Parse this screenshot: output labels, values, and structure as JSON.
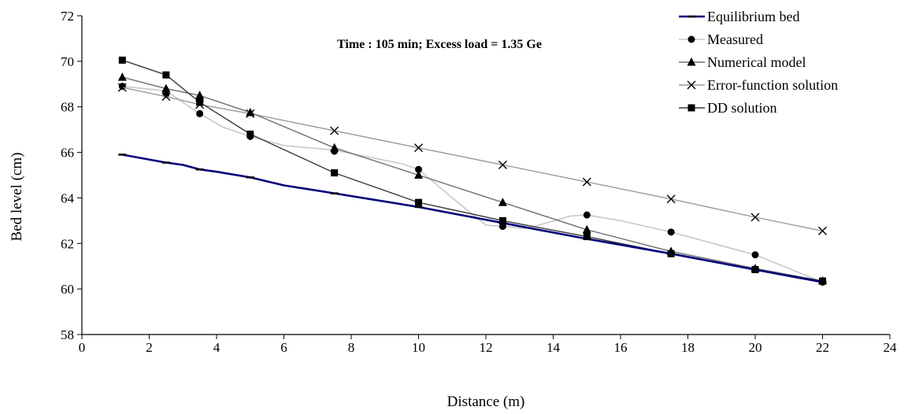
{
  "chart_data": {
    "type": "line",
    "annotation": "Time : 105 min; Excess load = 1.35 Ge",
    "xlabel": "Distance (m)",
    "ylabel": "Bed level (cm)",
    "xlim": [
      0,
      24
    ],
    "ylim": [
      58,
      72
    ],
    "x_ticks": [
      0,
      2,
      4,
      6,
      8,
      10,
      12,
      14,
      16,
      18,
      20,
      22,
      24
    ],
    "y_ticks": [
      58,
      60,
      62,
      64,
      66,
      68,
      70,
      72
    ],
    "grid": false,
    "legend_position": "top-right",
    "series": [
      {
        "name": "Equilibrium bed",
        "color": "#00007a",
        "marker": "dash",
        "points": [
          [
            1.2,
            65.9
          ],
          [
            2.5,
            65.55
          ],
          [
            3.0,
            65.45
          ],
          [
            3.5,
            65.25
          ],
          [
            4.0,
            65.15
          ],
          [
            5.0,
            64.9
          ],
          [
            6.0,
            64.55
          ],
          [
            7.5,
            64.2
          ],
          [
            10.0,
            63.6
          ],
          [
            12.5,
            62.9
          ],
          [
            15.0,
            62.2
          ],
          [
            17.5,
            61.55
          ],
          [
            20.0,
            60.85
          ],
          [
            22.0,
            60.3
          ]
        ]
      },
      {
        "name": "Measured",
        "color": "#c8c8c8",
        "marker": "circle",
        "points": [
          [
            1.2,
            68.9
          ],
          [
            2.5,
            68.7
          ],
          [
            3.5,
            67.7
          ],
          [
            4.2,
            67.1
          ],
          [
            5.0,
            66.7
          ],
          [
            6.0,
            66.3
          ],
          [
            7.5,
            66.1
          ],
          [
            9.5,
            65.5
          ],
          [
            10.0,
            65.25
          ],
          [
            11.0,
            64.0
          ],
          [
            12.0,
            62.8
          ],
          [
            12.5,
            62.75
          ],
          [
            13.2,
            62.65
          ],
          [
            14.5,
            63.2
          ],
          [
            15.0,
            63.25
          ],
          [
            16.0,
            63.0
          ],
          [
            17.5,
            62.5
          ],
          [
            19.0,
            61.9
          ],
          [
            20.0,
            61.5
          ],
          [
            21.0,
            60.9
          ],
          [
            22.0,
            60.3
          ]
        ],
        "marker_points": [
          [
            1.2,
            68.9
          ],
          [
            2.5,
            68.55
          ],
          [
            3.5,
            67.7
          ],
          [
            5.0,
            66.7
          ],
          [
            7.5,
            66.05
          ],
          [
            10.0,
            65.25
          ],
          [
            12.5,
            62.75
          ],
          [
            15.0,
            63.25
          ],
          [
            17.5,
            62.5
          ],
          [
            20.0,
            61.5
          ],
          [
            22.0,
            60.3
          ]
        ]
      },
      {
        "name": "Numerical model",
        "color": "#6e6e6e",
        "marker": "triangle",
        "points": [
          [
            1.2,
            69.3
          ],
          [
            2.5,
            68.8
          ],
          [
            3.5,
            68.5
          ],
          [
            5.0,
            67.75
          ],
          [
            7.5,
            66.2
          ],
          [
            10.0,
            65.0
          ],
          [
            12.5,
            63.8
          ],
          [
            15.0,
            62.6
          ],
          [
            17.5,
            61.65
          ],
          [
            20.0,
            60.9
          ],
          [
            22.0,
            60.35
          ]
        ]
      },
      {
        "name": "Error-function solution",
        "color": "#9a9a9a",
        "marker": "cross",
        "points": [
          [
            1.2,
            68.85
          ],
          [
            2.5,
            68.45
          ],
          [
            3.5,
            68.1
          ],
          [
            5.0,
            67.7
          ],
          [
            7.5,
            66.95
          ],
          [
            10.0,
            66.2
          ],
          [
            12.5,
            65.45
          ],
          [
            15.0,
            64.7
          ],
          [
            17.5,
            63.95
          ],
          [
            20.0,
            63.15
          ],
          [
            22.0,
            62.55
          ]
        ]
      },
      {
        "name": "DD solution",
        "color": "#3a3a3a",
        "marker": "square",
        "points": [
          [
            1.2,
            70.05
          ],
          [
            2.5,
            69.4
          ],
          [
            3.5,
            68.2
          ],
          [
            5.0,
            66.8
          ],
          [
            7.5,
            65.1
          ],
          [
            10.0,
            63.8
          ],
          [
            12.5,
            63.0
          ],
          [
            15.0,
            62.3
          ],
          [
            17.5,
            61.55
          ],
          [
            20.0,
            60.85
          ],
          [
            22.0,
            60.35
          ]
        ]
      }
    ]
  }
}
